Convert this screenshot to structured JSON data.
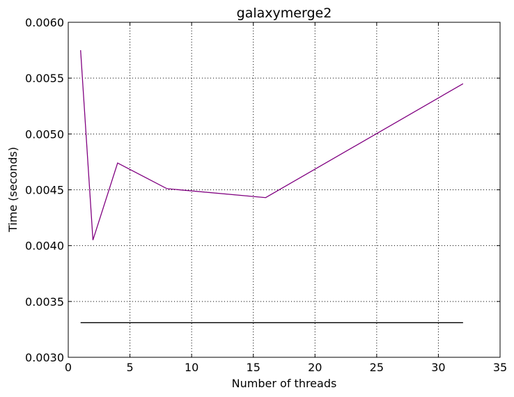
{
  "chart_data": {
    "type": "line",
    "title": "galaxymerge2",
    "xlabel": "Number of threads",
    "ylabel": "Time (seconds)",
    "xlim": [
      0,
      35
    ],
    "ylim": [
      0.003,
      0.006
    ],
    "xticks": [
      0,
      5,
      10,
      15,
      20,
      25,
      30,
      35
    ],
    "xtick_labels": [
      "0",
      "5",
      "10",
      "15",
      "20",
      "25",
      "30",
      "35"
    ],
    "yticks": [
      0.003,
      0.0035,
      0.004,
      0.0045,
      0.005,
      0.0055,
      0.006
    ],
    "ytick_labels": [
      "0.0030",
      "0.0035",
      "0.0040",
      "0.0045",
      "0.0050",
      "0.0055",
      "0.0060"
    ],
    "grid": true,
    "series": [
      {
        "color": "#800080",
        "x": [
          1,
          2,
          4,
          8,
          16,
          32
        ],
        "y": [
          0.00575,
          0.00405,
          0.00474,
          0.00451,
          0.00443,
          0.00545
        ]
      },
      {
        "color": "#000000",
        "x": [
          1,
          32
        ],
        "y": [
          0.00331,
          0.00331
        ]
      }
    ]
  }
}
